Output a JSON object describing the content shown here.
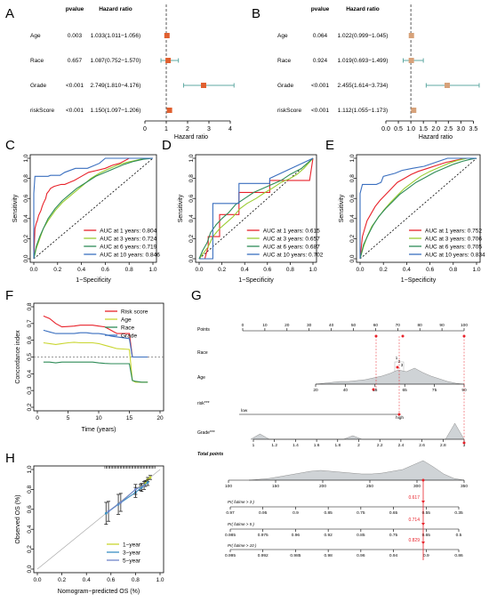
{
  "panel_letters": [
    "A",
    "B",
    "C",
    "D",
    "E",
    "F",
    "G",
    "H"
  ],
  "forest": {
    "header_pvalue": "pvalue",
    "header_hr": "Hazard ratio",
    "axis_label": "Hazard ratio",
    "variables": [
      "Age",
      "Race",
      "Grade",
      "riskScore"
    ],
    "square_color_A": "#e06030",
    "square_color_B": "#d7a27a",
    "ci_color": "#5fa9a3"
  },
  "nomogram": {
    "rows": {
      "points": "Points",
      "race": "Race",
      "age": "Age",
      "risk": "risk***",
      "grade": "Grade***",
      "total": "Total points",
      "p1": "Pr( futime > 3 )",
      "p2": "Pr( futime > 5 )",
      "p3": "Pr( futime > 10 )"
    },
    "points_ticks": [
      "0",
      "10",
      "20",
      "30",
      "40",
      "50",
      "60",
      "70",
      "80",
      "90",
      "100"
    ],
    "race_values": [
      "1",
      "2",
      "3"
    ],
    "age_ticks": [
      "20",
      "40",
      "55",
      "65",
      "75",
      "90"
    ],
    "risk_labels": [
      "low",
      "high"
    ],
    "grade_ticks": [
      "1",
      "1.2",
      "1.4",
      "1.6",
      "1.8",
      "2",
      "2.2",
      "2.4",
      "2.6",
      "2.8",
      "3"
    ],
    "total_ticks": [
      "100",
      "150",
      "200",
      "250",
      "300",
      "350"
    ],
    "p1_ticks": [
      "0.97",
      "0.95",
      "0.9",
      "0.85",
      "0.75",
      "0.65",
      "0.55",
      "0.35"
    ],
    "p2_ticks": [
      "0.985",
      "0.975",
      "0.96",
      "0.92",
      "0.85",
      "0.75",
      "0.65",
      "0.5"
    ],
    "p3_ticks": [
      "0.995",
      "0.992",
      "0.985",
      "0.98",
      "0.96",
      "0.94",
      "0.9",
      "0.86"
    ],
    "highlight": {
      "p1": "0.617",
      "p2": "0.714",
      "p3": "0.829"
    },
    "red": "#e8222a",
    "density_fill": "#cfd3d6"
  },
  "chart_data": [
    {
      "panel": "A",
      "type": "forest",
      "xlabel": "Hazard ratio",
      "xlim": [
        0,
        4
      ],
      "xticks": [
        0,
        1,
        2,
        3,
        4
      ],
      "rows": [
        {
          "name": "Age",
          "pvalue": "0.003",
          "hr_text": "1.033(1.011−1.056)",
          "hr": 1.033,
          "lo": 1.011,
          "hi": 1.056
        },
        {
          "name": "Race",
          "pvalue": "0.657",
          "hr_text": "1.087(0.752−1.570)",
          "hr": 1.087,
          "lo": 0.752,
          "hi": 1.57
        },
        {
          "name": "Grade",
          "pvalue": "<0.001",
          "hr_text": "2.749(1.810−4.176)",
          "hr": 2.749,
          "lo": 1.81,
          "hi": 4.176
        },
        {
          "name": "riskScore",
          "pvalue": "<0.001",
          "hr_text": "1.150(1.097−1.206)",
          "hr": 1.15,
          "lo": 1.097,
          "hi": 1.206
        }
      ]
    },
    {
      "panel": "B",
      "type": "forest",
      "xlabel": "Hazard ratio",
      "xlim": [
        0,
        3.7
      ],
      "xticks": [
        0,
        0.5,
        1,
        1.5,
        2,
        2.5,
        3,
        3.5
      ],
      "xtick_labels": [
        "0.0",
        "0.5",
        "1.0",
        "1.5",
        "2.0",
        "2.5",
        "3.0",
        "3.5"
      ],
      "rows": [
        {
          "name": "Age",
          "pvalue": "0.064",
          "hr_text": "1.022(0.999−1.045)",
          "hr": 1.022,
          "lo": 0.999,
          "hi": 1.045
        },
        {
          "name": "Race",
          "pvalue": "0.924",
          "hr_text": "1.019(0.693−1.499)",
          "hr": 1.019,
          "lo": 0.693,
          "hi": 1.499
        },
        {
          "name": "Grade",
          "pvalue": "<0.001",
          "hr_text": "2.455(1.614−3.734)",
          "hr": 2.455,
          "lo": 1.614,
          "hi": 3.734
        },
        {
          "name": "riskScore",
          "pvalue": "<0.001",
          "hr_text": "1.112(1.055−1.173)",
          "hr": 1.112,
          "lo": 1.055,
          "hi": 1.173
        }
      ]
    },
    {
      "panel": "C",
      "type": "line",
      "xlabel": "1−Specificity",
      "ylabel": "Sensitivity",
      "xlim": [
        0,
        1
      ],
      "ylim": [
        0,
        1
      ],
      "ticks": [
        "0.0",
        "0.2",
        "0.4",
        "0.6",
        "0.8",
        "1.0"
      ],
      "series": [
        {
          "name": "AUC at 1 years: 0.804",
          "color": "#e8222a",
          "x": [
            0,
            0.01,
            0.02,
            0.03,
            0.04,
            0.06,
            0.07,
            0.08,
            0.1,
            0.11,
            0.13,
            0.14,
            0.17,
            0.2,
            0.23,
            0.26,
            0.3,
            0.34,
            0.4,
            0.46,
            0.53,
            0.6,
            0.66,
            0.72,
            0.77,
            0.8,
            0.9,
            1
          ],
          "y": [
            0,
            0.3,
            0.35,
            0.38,
            0.43,
            0.48,
            0.52,
            0.55,
            0.6,
            0.65,
            0.68,
            0.7,
            0.72,
            0.73,
            0.74,
            0.74,
            0.76,
            0.78,
            0.82,
            0.86,
            0.88,
            0.9,
            0.93,
            0.95,
            0.98,
            1,
            1,
            1
          ]
        },
        {
          "name": "AUC at 3 years: 0.724",
          "color": "#9acd32",
          "x": [
            0,
            0.02,
            0.05,
            0.08,
            0.12,
            0.18,
            0.24,
            0.3,
            0.36,
            0.42,
            0.48,
            0.55,
            0.62,
            0.7,
            0.78,
            0.86,
            0.93,
            1
          ],
          "y": [
            0,
            0.1,
            0.2,
            0.3,
            0.38,
            0.48,
            0.56,
            0.62,
            0.68,
            0.74,
            0.8,
            0.85,
            0.89,
            0.93,
            0.96,
            0.98,
            1,
            1
          ]
        },
        {
          "name": "AUC at 6 years: 0.719",
          "color": "#2e8b57",
          "x": [
            0,
            0.02,
            0.05,
            0.08,
            0.12,
            0.18,
            0.24,
            0.3,
            0.36,
            0.44,
            0.52,
            0.6,
            0.68,
            0.76,
            0.84,
            0.92,
            1
          ],
          "y": [
            0,
            0.12,
            0.22,
            0.3,
            0.4,
            0.5,
            0.58,
            0.64,
            0.7,
            0.76,
            0.82,
            0.86,
            0.9,
            0.94,
            0.97,
            0.99,
            1
          ]
        },
        {
          "name": "AUC at 10 years: 0.846",
          "color": "#3a6fbf",
          "x": [
            0,
            0,
            0.01,
            0.12,
            0.14,
            0.22,
            0.26,
            0.35,
            0.45,
            0.55,
            0.6,
            0.7,
            1
          ],
          "y": [
            0,
            0.65,
            0.82,
            0.82,
            0.83,
            0.83,
            0.86,
            0.9,
            0.9,
            0.95,
            1,
            1,
            1
          ]
        }
      ]
    },
    {
      "panel": "D",
      "type": "line",
      "xlabel": "1−Specificity",
      "ylabel": "Sensitivity",
      "xlim": [
        0,
        1
      ],
      "ylim": [
        0,
        1
      ],
      "ticks": [
        "0.0",
        "0.2",
        "0.4",
        "0.6",
        "0.8",
        "1.0"
      ],
      "series": [
        {
          "name": "AUC at 1 years: 0.615",
          "color": "#e8222a",
          "x": [
            0,
            0.05,
            0.08,
            0.08,
            0.18,
            0.18,
            0.35,
            0.35,
            0.62,
            0.62,
            0.97,
            1
          ],
          "y": [
            0,
            0,
            0.12,
            0.22,
            0.22,
            0.44,
            0.44,
            0.66,
            0.66,
            0.78,
            0.78,
            1
          ]
        },
        {
          "name": "AUC at 3 years: 0.657",
          "color": "#9acd32",
          "x": [
            0,
            0.04,
            0.08,
            0.12,
            0.18,
            0.24,
            0.3,
            0.36,
            0.42,
            0.5,
            0.58,
            0.64,
            0.72,
            0.8,
            0.86,
            0.92,
            1
          ],
          "y": [
            0,
            0.06,
            0.12,
            0.22,
            0.3,
            0.36,
            0.42,
            0.5,
            0.55,
            0.6,
            0.66,
            0.7,
            0.76,
            0.8,
            0.84,
            0.9,
            1
          ]
        },
        {
          "name": "AUC at 6 years: 0.687",
          "color": "#2e8b57",
          "x": [
            0,
            0.03,
            0.07,
            0.1,
            0.15,
            0.2,
            0.26,
            0.32,
            0.4,
            0.48,
            0.56,
            0.64,
            0.72,
            0.8,
            0.9,
            1
          ],
          "y": [
            0,
            0.08,
            0.16,
            0.26,
            0.34,
            0.4,
            0.46,
            0.54,
            0.6,
            0.66,
            0.7,
            0.74,
            0.78,
            0.84,
            0.9,
            1
          ]
        },
        {
          "name": "AUC at 10 years: 0.702",
          "color": "#3a6fbf",
          "x": [
            0,
            0.12,
            0.12,
            0.35,
            0.35,
            0.62,
            0.62,
            1
          ],
          "y": [
            0,
            0,
            0.55,
            0.55,
            0.75,
            0.75,
            0.8,
            1
          ]
        }
      ]
    },
    {
      "panel": "E",
      "type": "line",
      "xlabel": "1−Specificity",
      "ylabel": "Sensitivity",
      "xlim": [
        0,
        1
      ],
      "ylim": [
        0,
        1
      ],
      "ticks": [
        "0.0",
        "0.2",
        "0.4",
        "0.6",
        "0.8",
        "1.0"
      ],
      "series": [
        {
          "name": "AUC at 1 years: 0.752",
          "color": "#e8222a",
          "x": [
            0,
            0.02,
            0.04,
            0.06,
            0.09,
            0.13,
            0.17,
            0.22,
            0.27,
            0.32,
            0.38,
            0.44,
            0.5,
            0.58,
            0.66,
            0.74,
            0.82,
            0.9,
            1
          ],
          "y": [
            0,
            0.22,
            0.3,
            0.38,
            0.44,
            0.52,
            0.58,
            0.64,
            0.7,
            0.76,
            0.8,
            0.84,
            0.87,
            0.9,
            0.93,
            0.96,
            0.98,
            1,
            1
          ]
        },
        {
          "name": "AUC at 3 years: 0.706",
          "color": "#9acd32",
          "x": [
            0,
            0.03,
            0.06,
            0.1,
            0.15,
            0.2,
            0.26,
            0.32,
            0.38,
            0.45,
            0.52,
            0.6,
            0.68,
            0.76,
            0.84,
            0.92,
            1
          ],
          "y": [
            0,
            0.12,
            0.22,
            0.32,
            0.4,
            0.48,
            0.56,
            0.63,
            0.7,
            0.76,
            0.82,
            0.87,
            0.91,
            0.95,
            0.98,
            1,
            1
          ]
        },
        {
          "name": "AUC at 6 years: 0.705",
          "color": "#2e8b57",
          "x": [
            0,
            0.03,
            0.07,
            0.11,
            0.16,
            0.22,
            0.28,
            0.34,
            0.41,
            0.48,
            0.56,
            0.64,
            0.72,
            0.8,
            0.88,
            0.95,
            1
          ],
          "y": [
            0,
            0.14,
            0.24,
            0.33,
            0.42,
            0.5,
            0.57,
            0.64,
            0.7,
            0.76,
            0.81,
            0.86,
            0.9,
            0.94,
            0.97,
            0.99,
            1
          ]
        },
        {
          "name": "AUC at 10 years: 0.834",
          "color": "#3a6fbf",
          "x": [
            0,
            0,
            0.02,
            0.14,
            0.18,
            0.2,
            0.3,
            0.36,
            0.45,
            0.55,
            0.65,
            0.75,
            1
          ],
          "y": [
            0,
            0.65,
            0.74,
            0.74,
            0.76,
            0.82,
            0.85,
            0.88,
            0.9,
            0.92,
            0.96,
            1,
            1
          ]
        }
      ]
    },
    {
      "panel": "F",
      "type": "line",
      "xlabel": "Time (years)",
      "ylabel": "Concordance index",
      "xlim": [
        0,
        20
      ],
      "ylim": [
        0.2,
        0.8
      ],
      "xticks": [
        0,
        5,
        10,
        15,
        20
      ],
      "yticks": [
        0.2,
        0.3,
        0.4,
        0.5,
        0.6,
        0.7,
        0.8
      ],
      "reference_y": 0.5,
      "series": [
        {
          "name": "Risk score",
          "color": "#e8222a",
          "x": [
            1,
            2,
            3,
            4,
            5,
            6,
            7,
            8,
            9,
            10,
            11,
            12,
            13,
            14,
            15,
            15.5,
            16,
            17,
            18
          ],
          "y": [
            0.745,
            0.73,
            0.7,
            0.68,
            0.682,
            0.685,
            0.69,
            0.69,
            0.69,
            0.685,
            0.68,
            0.66,
            0.64,
            0.64,
            0.64,
            0.5,
            0.5,
            0.5,
            0.5
          ]
        },
        {
          "name": "Age",
          "color": "#c9d630",
          "x": [
            1,
            2,
            3,
            4,
            5,
            6,
            7,
            8,
            9,
            10,
            11,
            12,
            13,
            14,
            15,
            15.5,
            16,
            17,
            18
          ],
          "y": [
            0.585,
            0.58,
            0.575,
            0.58,
            0.585,
            0.588,
            0.585,
            0.585,
            0.585,
            0.58,
            0.57,
            0.56,
            0.55,
            0.548,
            0.545,
            0.36,
            0.35,
            0.35,
            0.35
          ]
        },
        {
          "name": "Race",
          "color": "#2e8b57",
          "x": [
            1,
            2,
            3,
            4,
            5,
            6,
            7,
            8,
            9,
            10,
            11,
            12,
            13,
            14,
            15,
            15.5,
            16,
            17,
            18
          ],
          "y": [
            0.47,
            0.47,
            0.465,
            0.47,
            0.47,
            0.47,
            0.47,
            0.47,
            0.47,
            0.465,
            0.462,
            0.46,
            0.46,
            0.46,
            0.46,
            0.36,
            0.355,
            0.35,
            0.35
          ]
        },
        {
          "name": "Grade",
          "color": "#3a6fbf",
          "x": [
            1,
            2,
            3,
            4,
            5,
            6,
            7,
            8,
            9,
            10,
            11,
            12,
            13,
            14,
            15,
            15.5,
            16,
            17,
            18
          ],
          "y": [
            0.66,
            0.65,
            0.64,
            0.64,
            0.64,
            0.64,
            0.645,
            0.645,
            0.64,
            0.64,
            0.635,
            0.625,
            0.62,
            0.615,
            0.61,
            0.5,
            0.5,
            0.5,
            0.5
          ]
        }
      ]
    },
    {
      "panel": "H",
      "type": "line",
      "xlabel": "Nomogram−predicted OS (%)",
      "ylabel": "Observed OS (%)",
      "xlim": [
        0,
        1
      ],
      "ylim": [
        0,
        1
      ],
      "ticks": [
        "0.0",
        "0.2",
        "0.4",
        "0.6",
        "0.8",
        "1.0"
      ],
      "series": [
        {
          "name": "1−year",
          "color": "#c9d630",
          "x": [
            0.84,
            0.88,
            0.9,
            0.92
          ],
          "y": [
            0.82,
            0.86,
            0.9,
            0.92
          ],
          "err": [
            0.03,
            0.03,
            0.02,
            0.02
          ]
        },
        {
          "name": "3−year",
          "color": "#3a8fc2",
          "x": [
            0.56,
            0.66,
            0.8,
            0.85,
            0.9
          ],
          "y": [
            0.56,
            0.65,
            0.77,
            0.82,
            0.87
          ],
          "err": [
            0.11,
            0.1,
            0.05,
            0.04,
            0.03
          ]
        },
        {
          "name": "5−year",
          "color": "#6f86c8",
          "x": [
            0.58,
            0.68,
            0.8,
            0.87
          ],
          "y": [
            0.58,
            0.67,
            0.8,
            0.84
          ],
          "err": [
            0.1,
            0.09,
            0.05,
            0.04
          ]
        }
      ]
    }
  ]
}
